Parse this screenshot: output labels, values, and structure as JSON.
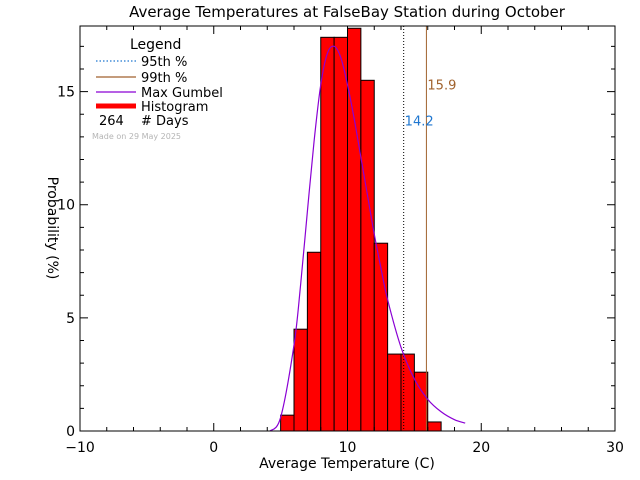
{
  "chart_data": {
    "type": "bar",
    "title": "Average Temperatures at FalseBay Station during October",
    "xlabel": "Average Temperature (C)",
    "ylabel": "Probability (%)",
    "xlim": [
      -10,
      30
    ],
    "ylim": [
      0,
      17.9
    ],
    "xticks": [
      -10,
      0,
      10,
      20,
      30
    ],
    "yticks": [
      0,
      5,
      10,
      15
    ],
    "histogram": {
      "bin_width": 1,
      "bin_starts": [
        5,
        6,
        7,
        8,
        9,
        10,
        11,
        12,
        13,
        14,
        15,
        16
      ],
      "values": [
        0.7,
        4.5,
        7.9,
        17.4,
        17.4,
        17.8,
        15.5,
        8.3,
        3.4,
        3.4,
        2.6,
        0.4
      ]
    },
    "gumbel_curve": {
      "x": [
        4.2,
        5,
        6,
        6.5,
        7,
        7.5,
        8,
        8.5,
        9,
        9.5,
        10,
        10.5,
        11,
        11.5,
        12,
        12.5,
        13,
        14,
        15,
        16,
        17,
        18,
        18.8
      ],
      "y": [
        0.0,
        0.6,
        3.8,
        6.5,
        9.7,
        12.8,
        15.3,
        16.7,
        17.0,
        16.5,
        15.3,
        13.8,
        12.1,
        10.4,
        8.7,
        7.2,
        5.8,
        3.7,
        2.3,
        1.4,
        0.85,
        0.5,
        0.35
      ]
    },
    "p95": {
      "value": 14.2,
      "label": "14.2",
      "color": "#1f77d0"
    },
    "p99": {
      "value": 15.9,
      "label": "15.9",
      "color": "#a0622d"
    },
    "colors": {
      "histogram": "#ff0000",
      "gumbel": "#8a00d4",
      "p95": "#1f77d0",
      "p99": "#a0622d"
    },
    "legend": {
      "title": "Legend",
      "items": [
        {
          "label": "95th %",
          "style": "dotted",
          "color": "#1f77d0"
        },
        {
          "label": "99th %",
          "style": "solid",
          "color": "#a0622d"
        },
        {
          "label": "Max Gumbel",
          "style": "solid",
          "color": "#8a00d4"
        },
        {
          "label": "Histogram",
          "style": "thick",
          "color": "#ff0000"
        }
      ],
      "days_count": "264",
      "days_label": "# Days",
      "made_on": "Made on 29 May 2025"
    }
  }
}
